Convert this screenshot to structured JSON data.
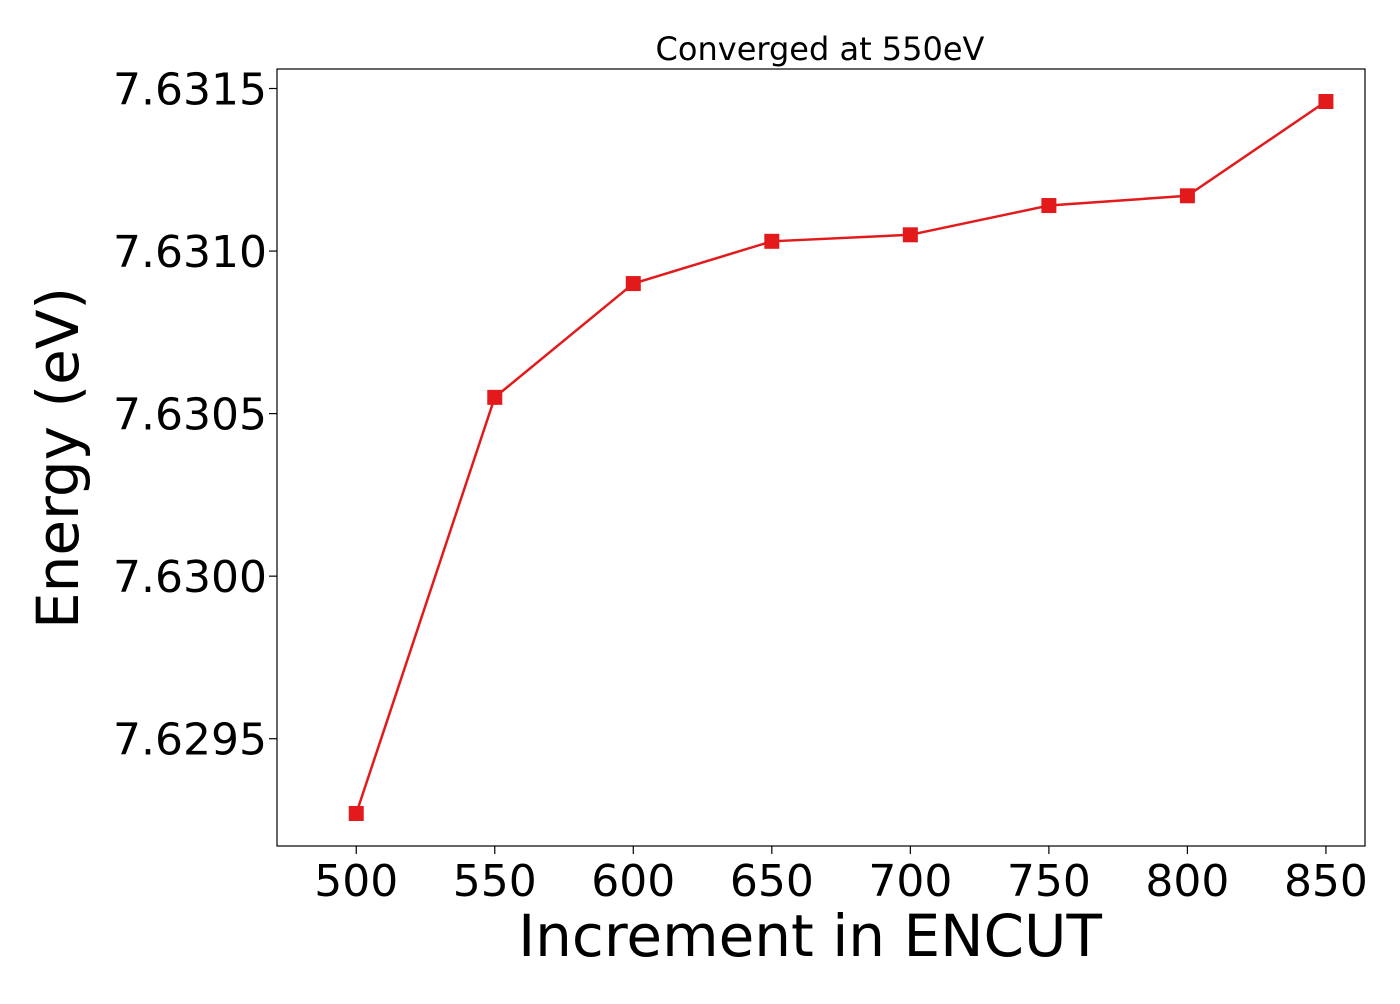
{
  "chart_data": {
    "type": "line",
    "title": "Converged at 550eV",
    "xlabel": "Increment in ENCUT",
    "ylabel": "Energy (eV)",
    "x": [
      500,
      550,
      600,
      650,
      700,
      750,
      800,
      850
    ],
    "xticks": [
      500,
      550,
      600,
      650,
      700,
      750,
      800,
      850
    ],
    "xtick_labels": [
      "500",
      "550",
      "600",
      "650",
      "700",
      "750",
      "800",
      "850"
    ],
    "yticks": [
      7.6295,
      7.63,
      7.6305,
      7.631,
      7.6315
    ],
    "ytick_labels": [
      "7.6295",
      "7.6300",
      "7.6305",
      "7.6310",
      "7.6315"
    ],
    "xlim": [
      471.4,
      864.1
    ],
    "ylim": [
      7.62917,
      7.63156
    ],
    "grid": false,
    "legend": false,
    "series": [
      {
        "values": [
          7.62927,
          7.63055,
          7.6309,
          7.63103,
          7.63105,
          7.63114,
          7.63117,
          7.63146
        ],
        "color": "#e31a1c",
        "marker": "square"
      }
    ]
  }
}
